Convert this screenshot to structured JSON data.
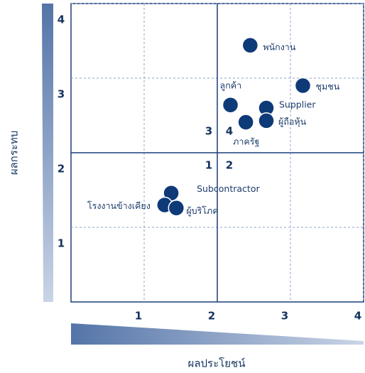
{
  "chart_data": {
    "type": "scatter",
    "xlabel": "ผลประโยชน์",
    "ylabel": "ผลกระทบ",
    "xlim": [
      0,
      4
    ],
    "ylim": [
      0,
      4
    ],
    "xticks": [
      1,
      2,
      3,
      4
    ],
    "yticks": [
      1,
      2,
      3,
      4
    ],
    "dividers": {
      "x": 2,
      "y": 2
    },
    "quadrant_labels": [
      "1",
      "2",
      "3",
      "4"
    ],
    "color": "#0e3a78",
    "points": [
      {
        "label": "พนักงาน",
        "x": 2.45,
        "y": 3.44
      },
      {
        "label": "ชุมชน",
        "x": 3.17,
        "y": 2.9
      },
      {
        "label": "ลูกค้า",
        "x": 2.18,
        "y": 2.64
      },
      {
        "label": "Supplier",
        "x": 2.67,
        "y": 2.6
      },
      {
        "label": "ผู้ถือหุ้น",
        "x": 2.67,
        "y": 2.43
      },
      {
        "label": "ภาครัฐ",
        "x": 2.39,
        "y": 2.41
      },
      {
        "label": "Subcontractor",
        "x": 1.37,
        "y": 1.46
      },
      {
        "label": "โรงงานข้างเคียง",
        "x": 1.28,
        "y": 1.3
      },
      {
        "label": "ผู้บริโภค",
        "x": 1.44,
        "y": 1.26
      }
    ]
  }
}
